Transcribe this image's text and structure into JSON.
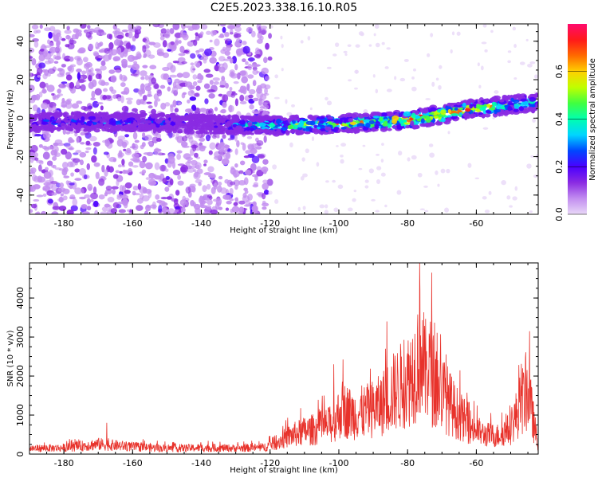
{
  "title": "C2E5.2023.338.16.10.R05",
  "colors": {
    "line": "#e8322b",
    "spectrum_purple": "#8a2be2",
    "colorbar_stops": [
      "#e9d8f7",
      "#c28df0",
      "#8a2be2",
      "#4b00ff",
      "#0047ff",
      "#00d5ff",
      "#00ffb0",
      "#40ff40",
      "#c0ff00",
      "#ffd000",
      "#ff6a00",
      "#ff1a1a",
      "#ff0a6e"
    ]
  },
  "chart_data": [
    {
      "type": "heatmap",
      "title": "C2E5.2023.338.16.10.R05",
      "xlabel": "Height of straight line (km)",
      "ylabel": "Frequency (Hz)",
      "xlim": [
        -190,
        -42
      ],
      "ylim": [
        -50,
        49
      ],
      "xticks": [
        -180,
        -160,
        -140,
        -120,
        -100,
        -80,
        -60
      ],
      "yticks": [
        -40,
        -20,
        0,
        20,
        40
      ],
      "colorbar": {
        "label": "Normalized spectral amplitude",
        "range": [
          0,
          0.8
        ],
        "ticks": [
          0.0,
          0.2,
          0.4,
          0.6
        ]
      },
      "ridge": {
        "x": [
          -190,
          -160,
          -140,
          -120,
          -100,
          -80,
          -60,
          -45
        ],
        "freq": [
          -2,
          -2,
          -3,
          -4,
          -3,
          -1,
          5,
          8
        ],
        "peak_amplitude": [
          0.2,
          0.22,
          0.12,
          0.35,
          0.45,
          0.55,
          0.5,
          0.3
        ]
      },
      "scatter_x_range": [
        -190,
        -120
      ],
      "grid": false
    },
    {
      "type": "line",
      "xlabel": "Height of straight line (km)",
      "ylabel": "SNR (10 * v/v)",
      "xlim": [
        -190,
        -42
      ],
      "ylim": [
        0,
        4900
      ],
      "xticks": [
        -180,
        -160,
        -140,
        -120,
        -100,
        -80,
        -60
      ],
      "yticks": [
        0,
        1000,
        2000,
        3000,
        4000
      ],
      "series": [
        {
          "x": [
            -190,
            -180,
            -170,
            -160,
            -150,
            -140,
            -130,
            -122,
            -118,
            -114,
            -110,
            -106,
            -102,
            -99,
            -96,
            -92,
            -88,
            -85,
            -83,
            -80,
            -78,
            -76,
            -75,
            -74,
            -72,
            -70,
            -66,
            -62,
            -58,
            -54,
            -50,
            -47,
            -45,
            -43,
            -42
          ],
          "y": [
            200,
            220,
            350,
            260,
            200,
            220,
            210,
            230,
            420,
            650,
            800,
            900,
            1050,
            1600,
            1400,
            1500,
            1700,
            2100,
            2300,
            2600,
            3000,
            3800,
            2800,
            3200,
            2400,
            2200,
            1500,
            1000,
            700,
            650,
            900,
            1800,
            2200,
            900,
            300
          ],
          "peaks": [
            {
              "x": -76.5,
              "y": 4900
            },
            {
              "x": -73,
              "y": 4650
            },
            {
              "x": -86,
              "y": 3400
            },
            {
              "x": -44.5,
              "y": 3150
            },
            {
              "x": -101.5,
              "y": 2300
            },
            {
              "x": -167.5,
              "y": 800
            }
          ]
        }
      ],
      "grid": false
    }
  ]
}
